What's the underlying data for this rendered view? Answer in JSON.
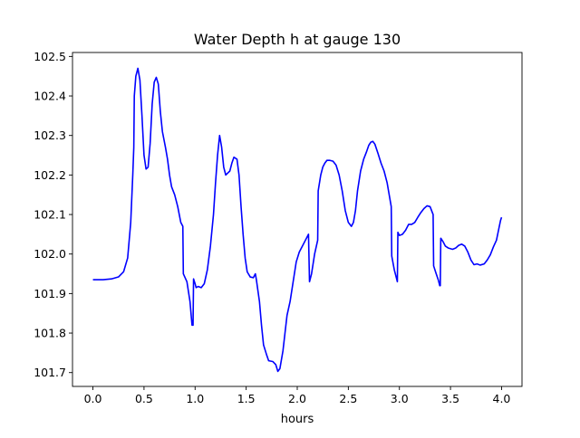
{
  "chart_data": {
    "type": "line",
    "title": "Water Depth h at gauge 130",
    "xlabel": "hours",
    "ylabel": "",
    "xlim": [
      -0.2,
      4.2
    ],
    "ylim": [
      101.665,
      102.51
    ],
    "grid": false,
    "xticks": [
      0.0,
      0.5,
      1.0,
      1.5,
      2.0,
      2.5,
      3.0,
      3.5,
      4.0
    ],
    "xtick_labels": [
      "0.0",
      "0.5",
      "1.0",
      "1.5",
      "2.0",
      "2.5",
      "3.0",
      "3.5",
      "4.0"
    ],
    "yticks": [
      101.7,
      101.8,
      101.9,
      102.0,
      102.1,
      102.2,
      102.3,
      102.4,
      102.5
    ],
    "ytick_labels": [
      "101.7",
      "101.8",
      "101.9",
      "102.0",
      "102.1",
      "102.2",
      "102.3",
      "102.4",
      "102.5"
    ],
    "series": [
      {
        "color": "#0000ff",
        "points": [
          [
            0.0,
            101.935
          ],
          [
            0.1,
            101.935
          ],
          [
            0.18,
            101.937
          ],
          [
            0.25,
            101.942
          ],
          [
            0.3,
            101.955
          ],
          [
            0.34,
            101.99
          ],
          [
            0.37,
            102.08
          ],
          [
            0.39,
            102.2
          ],
          [
            0.4,
            102.27
          ],
          [
            0.405,
            102.4
          ],
          [
            0.42,
            102.45
          ],
          [
            0.44,
            102.47
          ],
          [
            0.46,
            102.44
          ],
          [
            0.48,
            102.35
          ],
          [
            0.5,
            102.25
          ],
          [
            0.52,
            102.215
          ],
          [
            0.54,
            102.22
          ],
          [
            0.56,
            102.28
          ],
          [
            0.58,
            102.38
          ],
          [
            0.6,
            102.435
          ],
          [
            0.62,
            102.447
          ],
          [
            0.64,
            102.43
          ],
          [
            0.66,
            102.36
          ],
          [
            0.68,
            102.31
          ],
          [
            0.71,
            102.27
          ],
          [
            0.73,
            102.24
          ],
          [
            0.75,
            102.2
          ],
          [
            0.77,
            102.17
          ],
          [
            0.8,
            102.15
          ],
          [
            0.83,
            102.12
          ],
          [
            0.86,
            102.08
          ],
          [
            0.88,
            102.07
          ],
          [
            0.885,
            101.95
          ],
          [
            0.92,
            101.93
          ],
          [
            0.95,
            101.88
          ],
          [
            0.97,
            101.82
          ],
          [
            0.98,
            101.82
          ],
          [
            0.985,
            101.937
          ],
          [
            1.0,
            101.925
          ],
          [
            1.01,
            101.915
          ],
          [
            1.03,
            101.918
          ],
          [
            1.06,
            101.915
          ],
          [
            1.09,
            101.925
          ],
          [
            1.12,
            101.96
          ],
          [
            1.15,
            102.02
          ],
          [
            1.18,
            102.1
          ],
          [
            1.2,
            102.18
          ],
          [
            1.22,
            102.25
          ],
          [
            1.24,
            102.3
          ],
          [
            1.26,
            102.27
          ],
          [
            1.28,
            102.22
          ],
          [
            1.3,
            102.2
          ],
          [
            1.32,
            102.205
          ],
          [
            1.34,
            102.21
          ],
          [
            1.36,
            102.23
          ],
          [
            1.38,
            102.245
          ],
          [
            1.41,
            102.24
          ],
          [
            1.43,
            102.2
          ],
          [
            1.45,
            102.12
          ],
          [
            1.47,
            102.05
          ],
          [
            1.49,
            101.99
          ],
          [
            1.51,
            101.955
          ],
          [
            1.54,
            101.942
          ],
          [
            1.57,
            101.94
          ],
          [
            1.59,
            101.95
          ],
          [
            1.6,
            101.935
          ],
          [
            1.63,
            101.88
          ],
          [
            1.65,
            101.82
          ],
          [
            1.67,
            101.77
          ],
          [
            1.7,
            101.745
          ],
          [
            1.72,
            101.73
          ],
          [
            1.76,
            101.728
          ],
          [
            1.79,
            101.72
          ],
          [
            1.81,
            101.703
          ],
          [
            1.83,
            101.71
          ],
          [
            1.86,
            101.755
          ],
          [
            1.88,
            101.8
          ],
          [
            1.9,
            101.845
          ],
          [
            1.93,
            101.88
          ],
          [
            1.96,
            101.93
          ],
          [
            1.99,
            101.98
          ],
          [
            2.02,
            102.005
          ],
          [
            2.05,
            102.02
          ],
          [
            2.08,
            102.035
          ],
          [
            2.11,
            102.05
          ],
          [
            2.12,
            101.93
          ],
          [
            2.14,
            101.95
          ],
          [
            2.17,
            102.0
          ],
          [
            2.2,
            102.035
          ],
          [
            2.205,
            102.16
          ],
          [
            2.23,
            102.2
          ],
          [
            2.25,
            102.22
          ],
          [
            2.27,
            102.23
          ],
          [
            2.29,
            102.237
          ],
          [
            2.32,
            102.237
          ],
          [
            2.35,
            102.235
          ],
          [
            2.38,
            102.225
          ],
          [
            2.41,
            102.2
          ],
          [
            2.44,
            102.16
          ],
          [
            2.47,
            102.11
          ],
          [
            2.5,
            102.08
          ],
          [
            2.53,
            102.07
          ],
          [
            2.55,
            102.08
          ],
          [
            2.57,
            102.11
          ],
          [
            2.59,
            102.16
          ],
          [
            2.62,
            102.21
          ],
          [
            2.65,
            102.24
          ],
          [
            2.68,
            102.26
          ],
          [
            2.7,
            102.275
          ],
          [
            2.72,
            102.283
          ],
          [
            2.74,
            102.285
          ],
          [
            2.76,
            102.278
          ],
          [
            2.79,
            102.255
          ],
          [
            2.82,
            102.23
          ],
          [
            2.85,
            102.21
          ],
          [
            2.88,
            102.18
          ],
          [
            2.9,
            102.15
          ],
          [
            2.92,
            102.12
          ],
          [
            2.925,
            101.995
          ],
          [
            2.95,
            101.96
          ],
          [
            2.97,
            101.94
          ],
          [
            2.98,
            101.93
          ],
          [
            2.985,
            102.055
          ],
          [
            3.0,
            102.047
          ],
          [
            3.03,
            102.05
          ],
          [
            3.06,
            102.06
          ],
          [
            3.09,
            102.075
          ],
          [
            3.12,
            102.075
          ],
          [
            3.15,
            102.08
          ],
          [
            3.18,
            102.093
          ],
          [
            3.21,
            102.105
          ],
          [
            3.24,
            102.115
          ],
          [
            3.27,
            102.122
          ],
          [
            3.3,
            102.12
          ],
          [
            3.33,
            102.1
          ],
          [
            3.335,
            101.97
          ],
          [
            3.36,
            101.95
          ],
          [
            3.38,
            101.935
          ],
          [
            3.395,
            101.92
          ],
          [
            3.4,
            101.92
          ],
          [
            3.405,
            102.04
          ],
          [
            3.43,
            102.03
          ],
          [
            3.45,
            102.02
          ],
          [
            3.48,
            102.015
          ],
          [
            3.52,
            102.012
          ],
          [
            3.55,
            102.015
          ],
          [
            3.58,
            102.022
          ],
          [
            3.61,
            102.025
          ],
          [
            3.64,
            102.02
          ],
          [
            3.67,
            102.005
          ],
          [
            3.7,
            101.985
          ],
          [
            3.73,
            101.973
          ],
          [
            3.76,
            101.975
          ],
          [
            3.79,
            101.972
          ],
          [
            3.83,
            101.975
          ],
          [
            3.86,
            101.985
          ],
          [
            3.89,
            101.998
          ],
          [
            3.92,
            102.018
          ],
          [
            3.95,
            102.035
          ],
          [
            3.97,
            102.06
          ],
          [
            3.99,
            102.085
          ],
          [
            4.0,
            102.093
          ]
        ]
      }
    ]
  }
}
